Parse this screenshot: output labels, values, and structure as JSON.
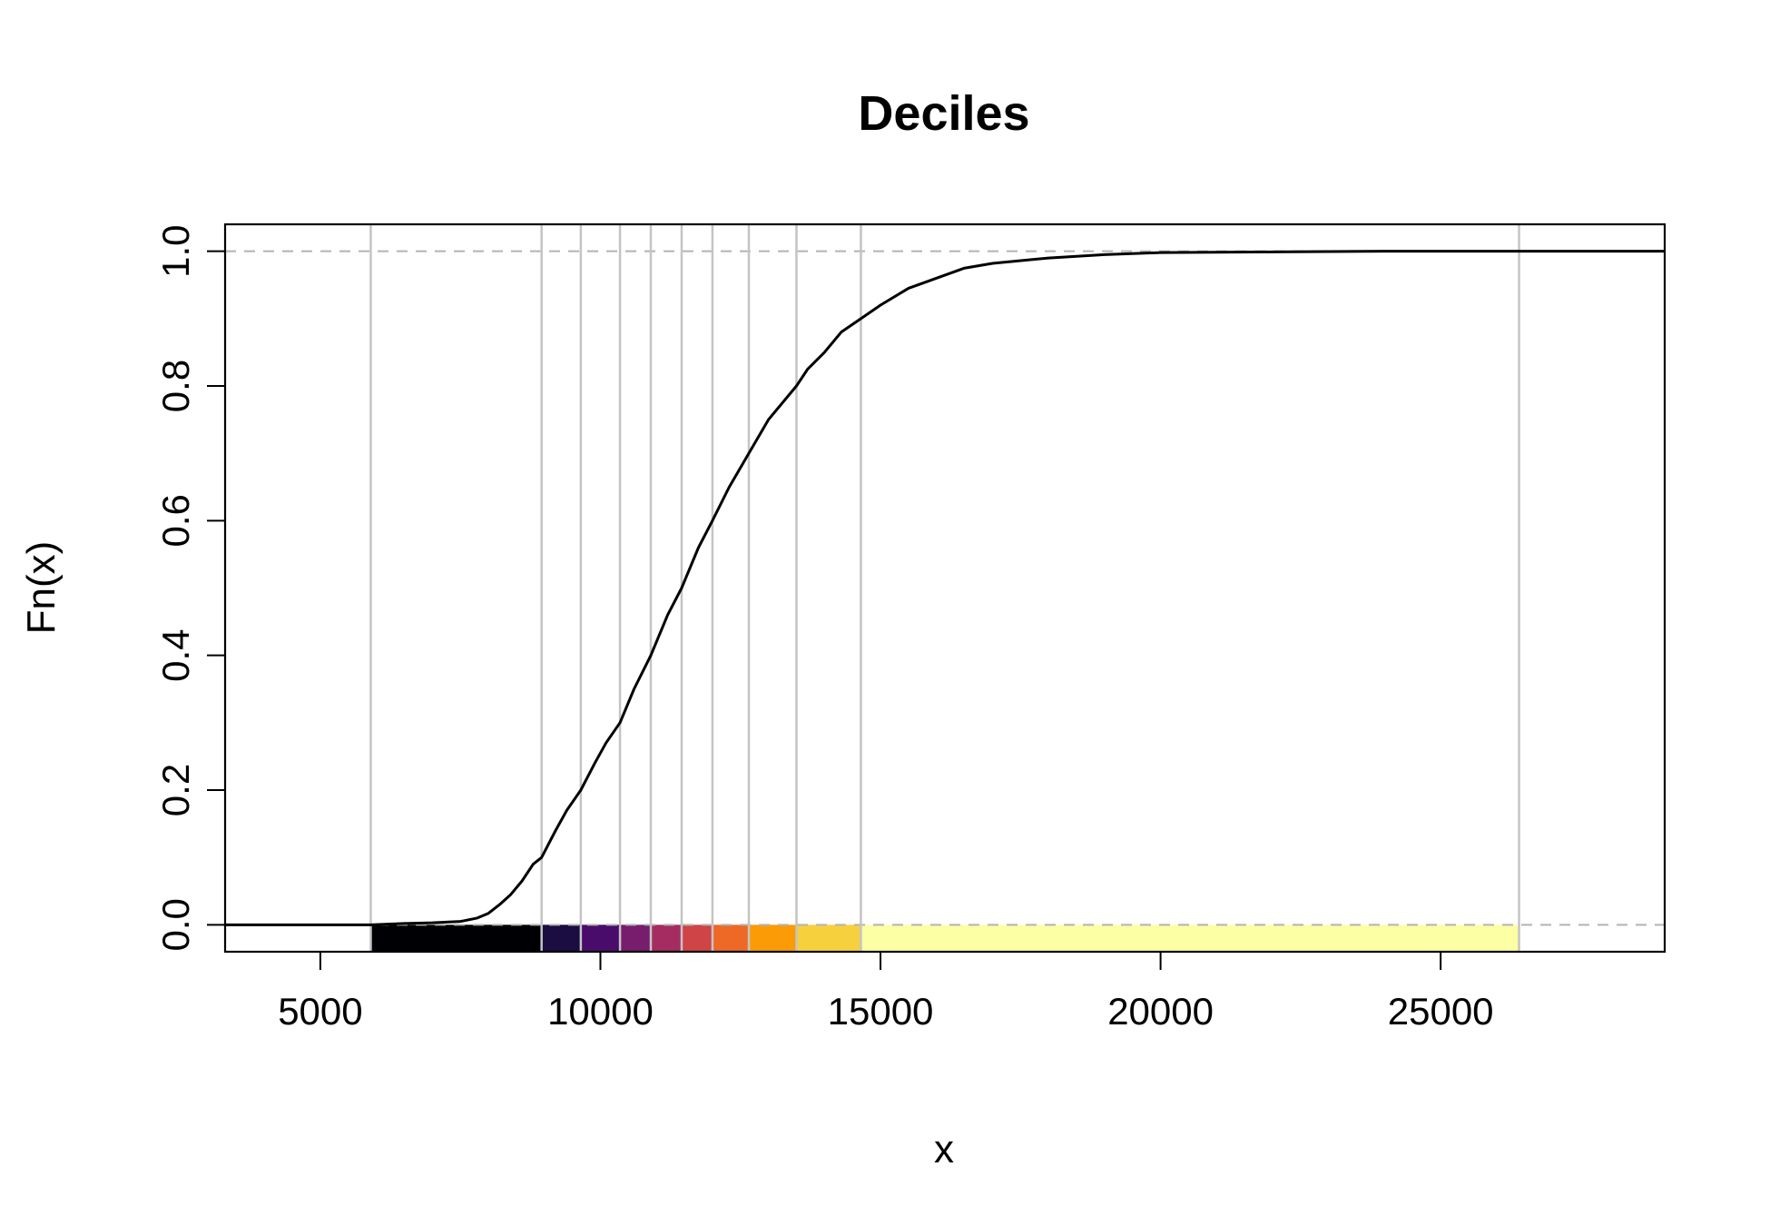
{
  "chart_data": {
    "type": "line",
    "title": "Deciles",
    "xlabel": "x",
    "ylabel": "Fn(x)",
    "xlim": [
      3300,
      29000
    ],
    "ylim": [
      -0.04,
      1.04
    ],
    "x_ticks": [
      5000,
      10000,
      15000,
      20000,
      25000
    ],
    "y_ticks": [
      0.0,
      0.2,
      0.4,
      0.6,
      0.8,
      1.0
    ],
    "x_tick_labels": [
      "5000",
      "10000",
      "15000",
      "20000",
      "25000"
    ],
    "y_tick_labels": [
      "0.0",
      "0.2",
      "0.4",
      "0.6",
      "0.8",
      "1.0"
    ],
    "grid": false,
    "reference_lines_y": [
      0,
      1
    ],
    "decile_breaks": [
      5900,
      8950,
      9650,
      10350,
      10900,
      11450,
      12000,
      12650,
      13500,
      14650,
      26400
    ],
    "decile_colors": [
      "#000004",
      "#1B0C41",
      "#4A0C6B",
      "#781C6D",
      "#A52C60",
      "#CF4446",
      "#ED6925",
      "#FB9B06",
      "#F7D13D",
      "#FCFFA4"
    ],
    "series": [
      {
        "x": [
          3300,
          5900,
          6500,
          7000,
          7500,
          7800,
          8000,
          8200,
          8400,
          8600,
          8800,
          8950,
          9200,
          9400,
          9650,
          9900,
          10100,
          10350,
          10600,
          10900,
          11200,
          11450,
          11750,
          12000,
          12300,
          12650,
          13000,
          13500,
          13700,
          14000,
          14300,
          14650,
          15000,
          15500,
          16000,
          16500,
          17000,
          18000,
          19000,
          20000,
          22000,
          24000,
          26400,
          29000
        ],
        "y": [
          0.0,
          0.0,
          0.002,
          0.003,
          0.005,
          0.01,
          0.017,
          0.03,
          0.045,
          0.065,
          0.09,
          0.1,
          0.14,
          0.17,
          0.2,
          0.24,
          0.27,
          0.3,
          0.35,
          0.4,
          0.46,
          0.5,
          0.56,
          0.6,
          0.65,
          0.7,
          0.75,
          0.8,
          0.825,
          0.85,
          0.88,
          0.9,
          0.92,
          0.945,
          0.96,
          0.975,
          0.982,
          0.99,
          0.995,
          0.998,
          0.999,
          1.0,
          1.0,
          1.0
        ]
      }
    ]
  }
}
